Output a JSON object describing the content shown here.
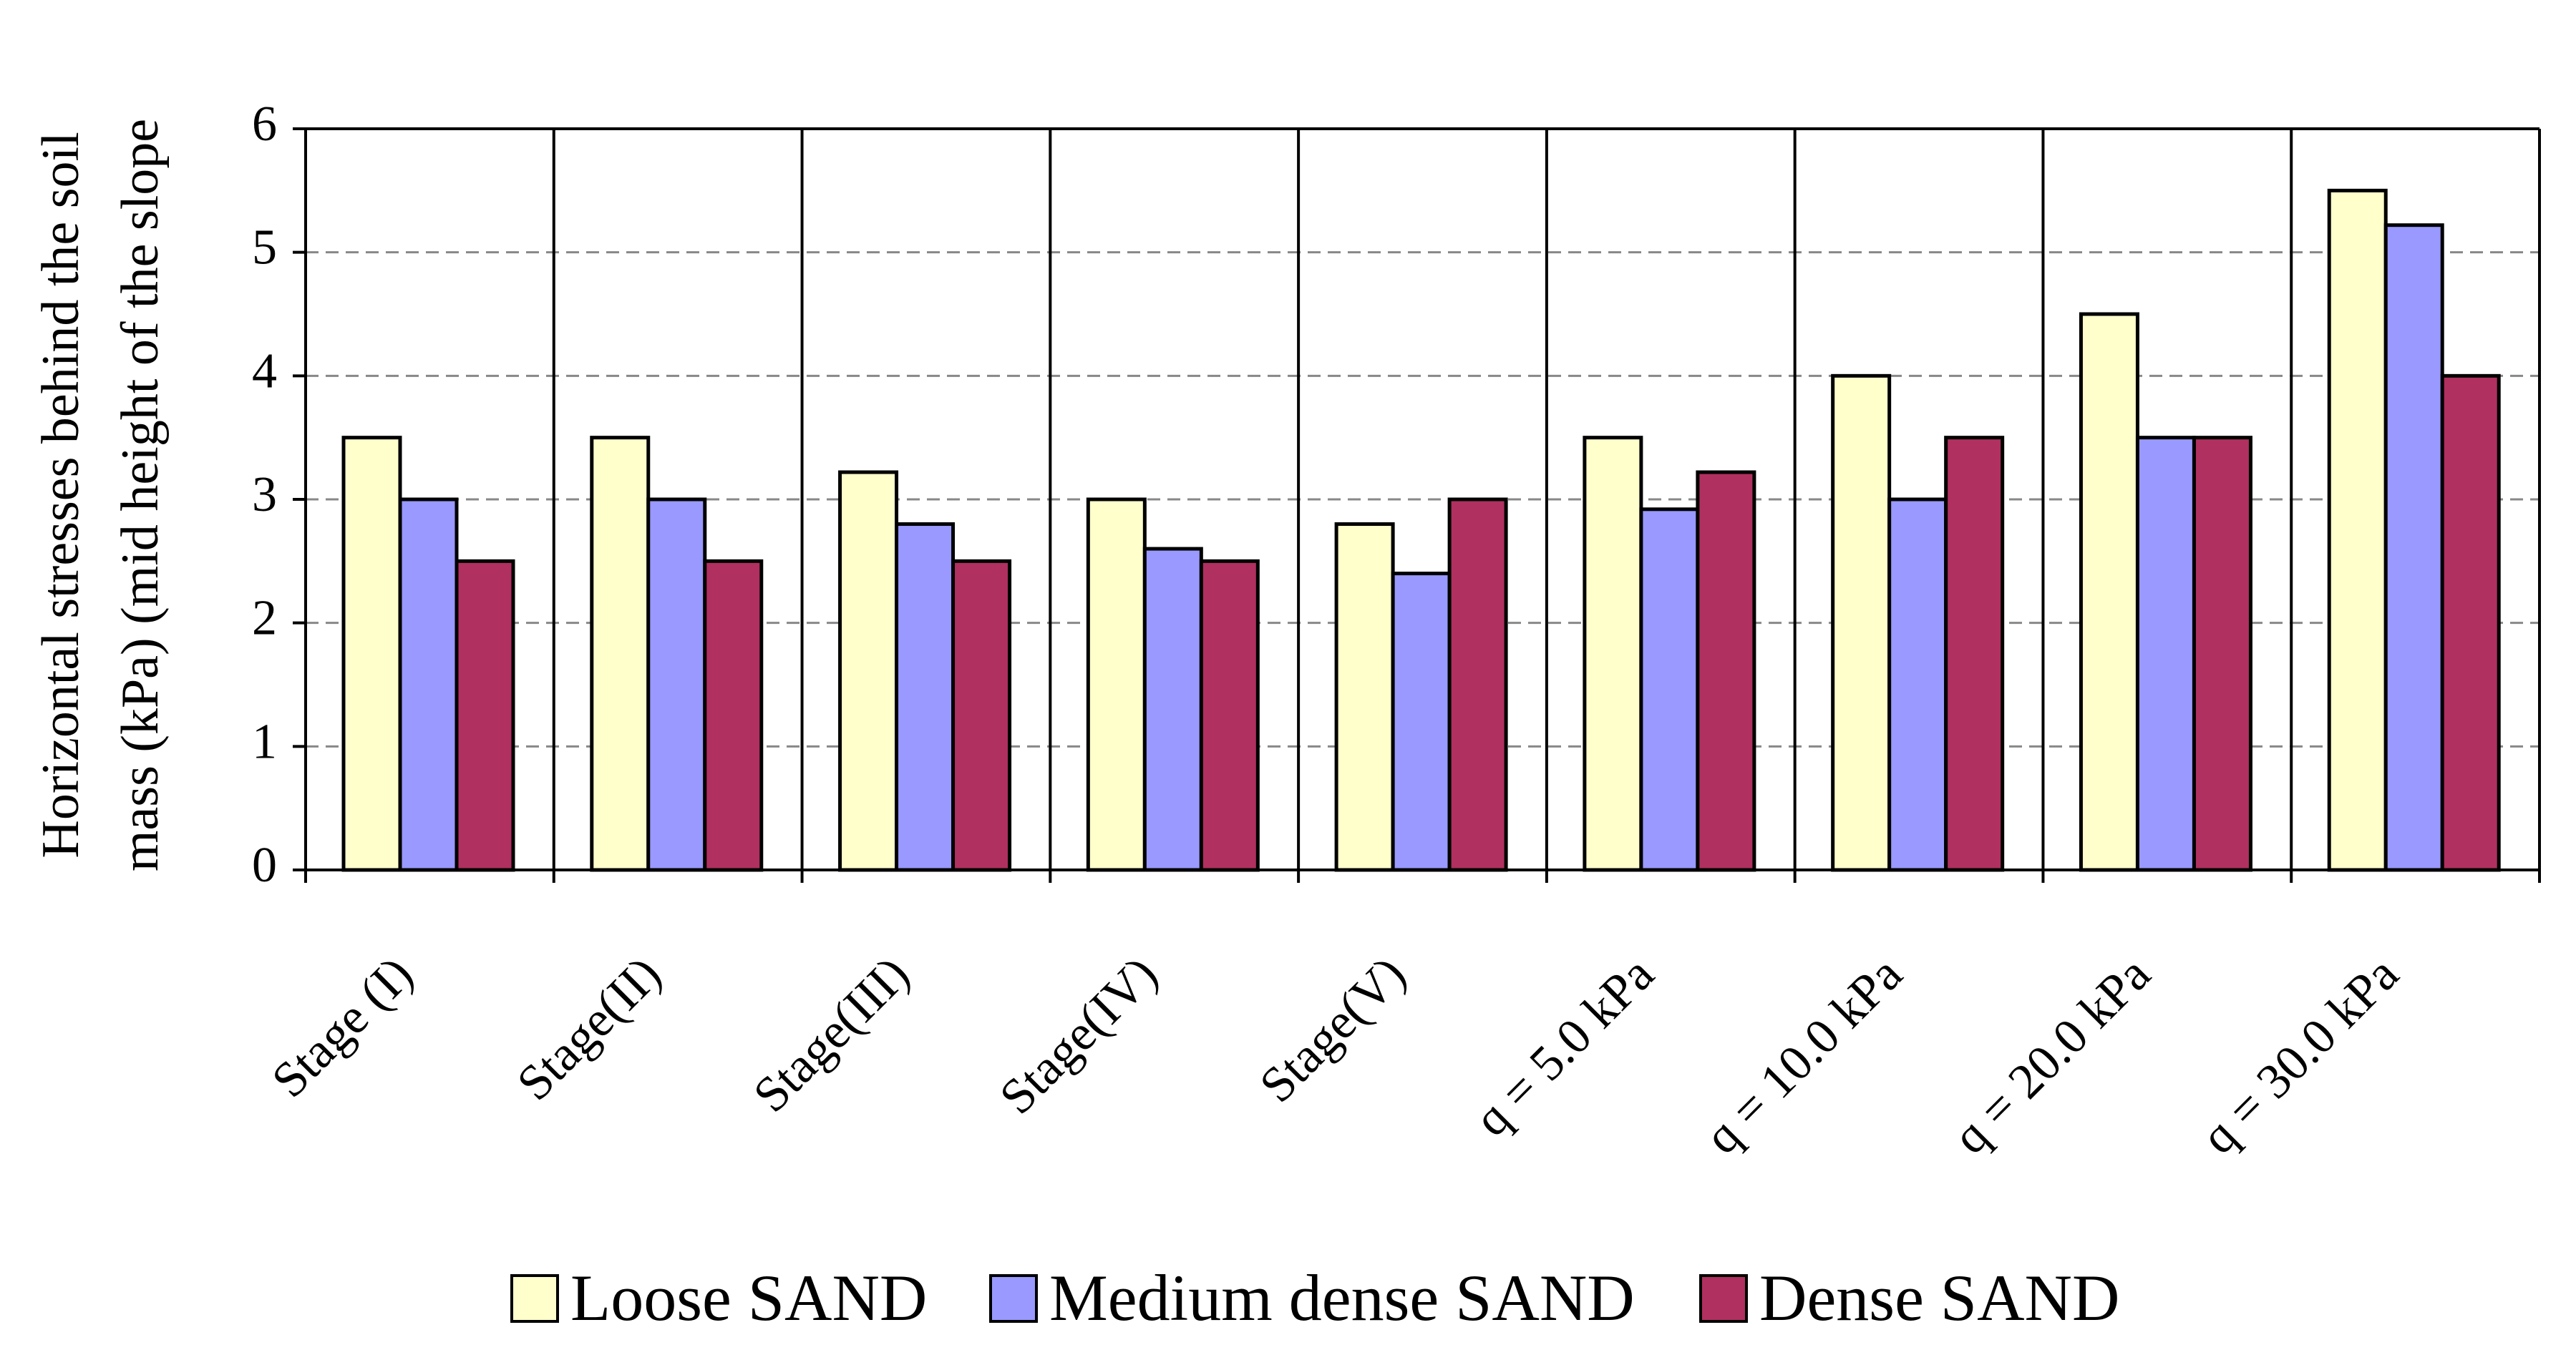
{
  "chart_data": {
    "type": "bar",
    "ylabel": [
      "Horizontal stresses behind the soil",
      "mass (kPa) (mid height of the slope"
    ],
    "categories": [
      "Stage (I)",
      "Stage(II)",
      "Stage(III)",
      "Stage(IV)",
      "Stage(V)",
      "q = 5.0 kPa",
      "q = 10.0 kPa",
      "q = 20.0 kPa",
      "q = 30.0 kPa"
    ],
    "series": [
      {
        "name": "Loose SAND",
        "color": "#ffffcc",
        "values": [
          3.5,
          3.5,
          3.22,
          3.0,
          2.8,
          3.5,
          4.0,
          4.5,
          5.5
        ]
      },
      {
        "name": "Medium dense SAND",
        "color": "#9999ff",
        "values": [
          3.0,
          3.0,
          2.8,
          2.6,
          2.4,
          2.92,
          3.0,
          3.5,
          5.22
        ]
      },
      {
        "name": "Dense SAND",
        "color": "#b0305f",
        "values": [
          2.5,
          2.5,
          2.5,
          2.5,
          3.0,
          3.22,
          3.5,
          3.5,
          4.0
        ]
      }
    ],
    "ylim": [
      0,
      6
    ],
    "yticks": [
      0,
      1,
      2,
      3,
      4,
      5,
      6
    ],
    "grid": true,
    "legend": "bottom"
  }
}
